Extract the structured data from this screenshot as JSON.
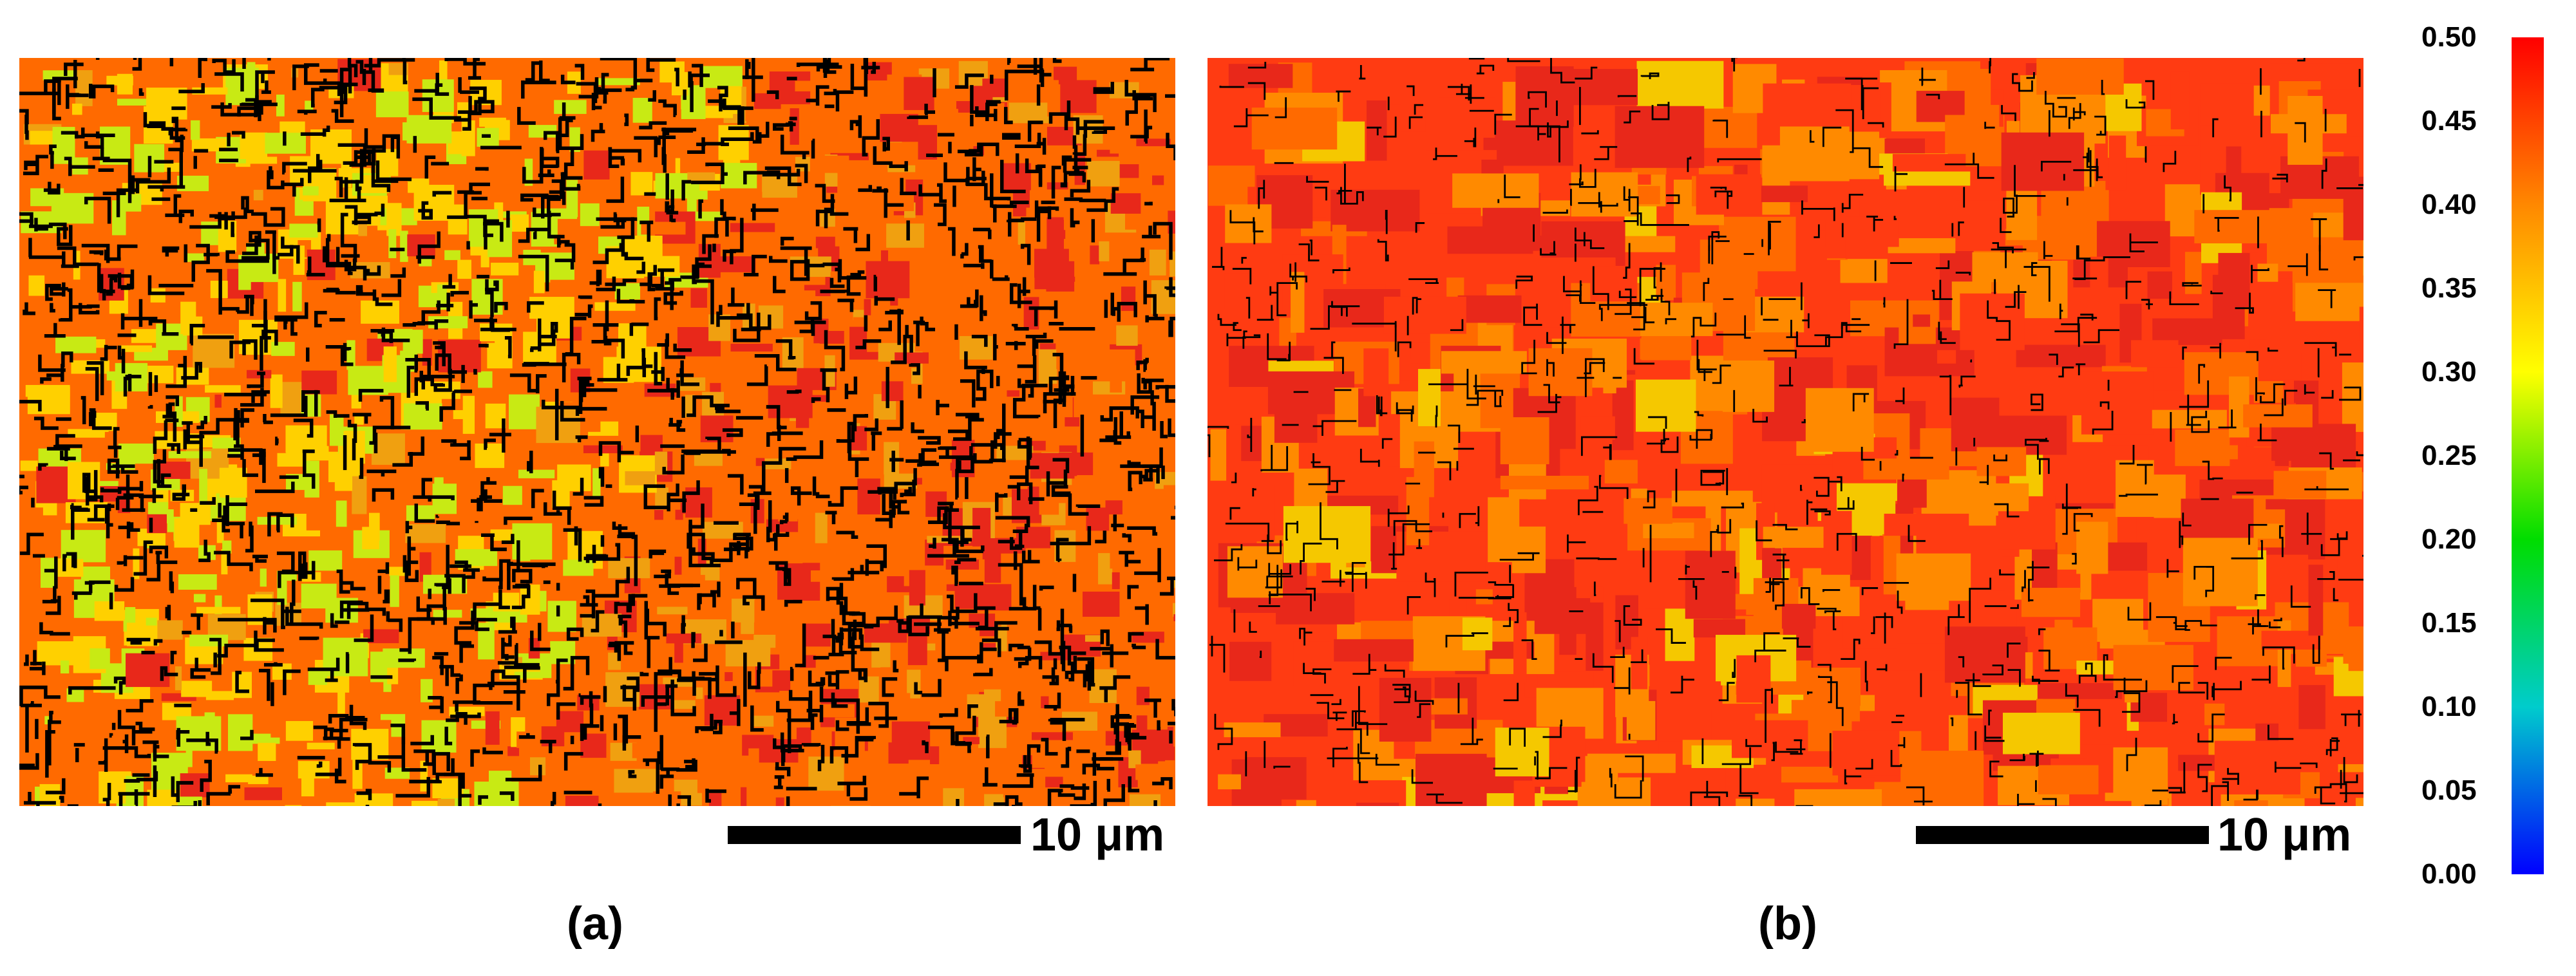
{
  "panels": [
    {
      "id": "a",
      "label": "(a)",
      "scale_label": "10 μm",
      "dominant_colors": [
        "#ff6a00",
        "#e8281a",
        "#ffd000",
        "#c8ea14",
        "#f0a010"
      ],
      "boundary_color": "#000000",
      "grain_density": "high"
    },
    {
      "id": "b",
      "label": "(b)",
      "scale_label": "10 μm",
      "dominant_colors": [
        "#ff3b12",
        "#ff6a00",
        "#ff8a00",
        "#e8281a",
        "#f5c800"
      ],
      "boundary_color": "#000000",
      "grain_density": "medium"
    }
  ],
  "colorbar": {
    "min": 0.0,
    "max": 0.5,
    "tick_labels": [
      "0.50",
      "0.45",
      "0.40",
      "0.35",
      "0.30",
      "0.25",
      "0.20",
      "0.15",
      "0.10",
      "0.05",
      "0.00"
    ],
    "gradient_colors": [
      "#ff0000",
      "#ff8800",
      "#ffff00",
      "#00dd00",
      "#00cccc",
      "#0000ff"
    ]
  }
}
